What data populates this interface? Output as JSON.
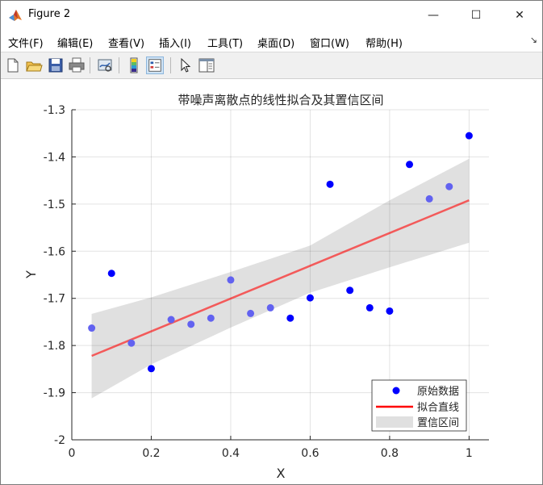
{
  "window": {
    "title": "Figure 2",
    "controls": {
      "minimize": "—",
      "maximize": "☐",
      "close": "✕"
    }
  },
  "menu": {
    "items": [
      "文件(F)",
      "编辑(E)",
      "查看(V)",
      "插入(I)",
      "工具(T)",
      "桌面(D)",
      "窗口(W)",
      "帮助(H)"
    ],
    "overflow_icon": "↘"
  },
  "toolbar": {
    "buttons": [
      "new-figure-icon",
      "open-file-icon",
      "save-icon",
      "print-icon",
      "link-plot-icon",
      "colorbar-icon",
      "legend-icon",
      "pointer-icon",
      "property-inspector-icon"
    ],
    "active": "legend-icon"
  },
  "chart_data": {
    "type": "scatter",
    "title": "带噪声离散点的线性拟合及其置信区间",
    "xlabel": "X",
    "ylabel": "Y",
    "xlim": [
      0,
      1.05
    ],
    "ylim": [
      -2,
      -1.3
    ],
    "xticks": [
      0,
      0.2,
      0.4,
      0.6,
      0.8,
      1
    ],
    "xtick_labels": [
      "0",
      "0.2",
      "0.4",
      "0.6",
      "0.8",
      "1"
    ],
    "yticks": [
      -2,
      -1.9,
      -1.8,
      -1.7,
      -1.6,
      -1.5,
      -1.4,
      -1.3
    ],
    "ytick_labels": [
      "-2",
      "-1.9",
      "-1.8",
      "-1.7",
      "-1.6",
      "-1.5",
      "-1.4",
      "-1.3"
    ],
    "grid": true,
    "legend_position": "bottom-right",
    "series": [
      {
        "name": "原始数据",
        "kind": "points",
        "color": "#0000ff",
        "x": [
          0.05,
          0.1,
          0.15,
          0.2,
          0.25,
          0.3,
          0.35,
          0.4,
          0.45,
          0.5,
          0.55,
          0.6,
          0.65,
          0.7,
          0.75,
          0.8,
          0.85,
          0.9,
          0.95,
          1.0
        ],
        "y": [
          -1.763,
          -1.647,
          -1.795,
          -1.849,
          -1.745,
          -1.755,
          -1.742,
          -1.661,
          -1.732,
          -1.72,
          -1.742,
          -1.699,
          -1.458,
          -1.683,
          -1.72,
          -1.727,
          -1.416,
          -1.489,
          -1.463,
          -1.355
        ]
      },
      {
        "name": "拟合直线",
        "kind": "line",
        "color": "#ff0000",
        "x": [
          0.05,
          1.0
        ],
        "y": [
          -1.822,
          -1.492
        ]
      },
      {
        "name": "置信区间",
        "kind": "band",
        "color": "#e0e0e0",
        "x": [
          0.05,
          0.2,
          0.4,
          0.6,
          0.8,
          1.0
        ],
        "lower": [
          -1.912,
          -1.84,
          -1.762,
          -1.688,
          -1.634,
          -1.582
        ],
        "upper": [
          -1.733,
          -1.698,
          -1.644,
          -1.588,
          -1.492,
          -1.404
        ]
      }
    ]
  }
}
